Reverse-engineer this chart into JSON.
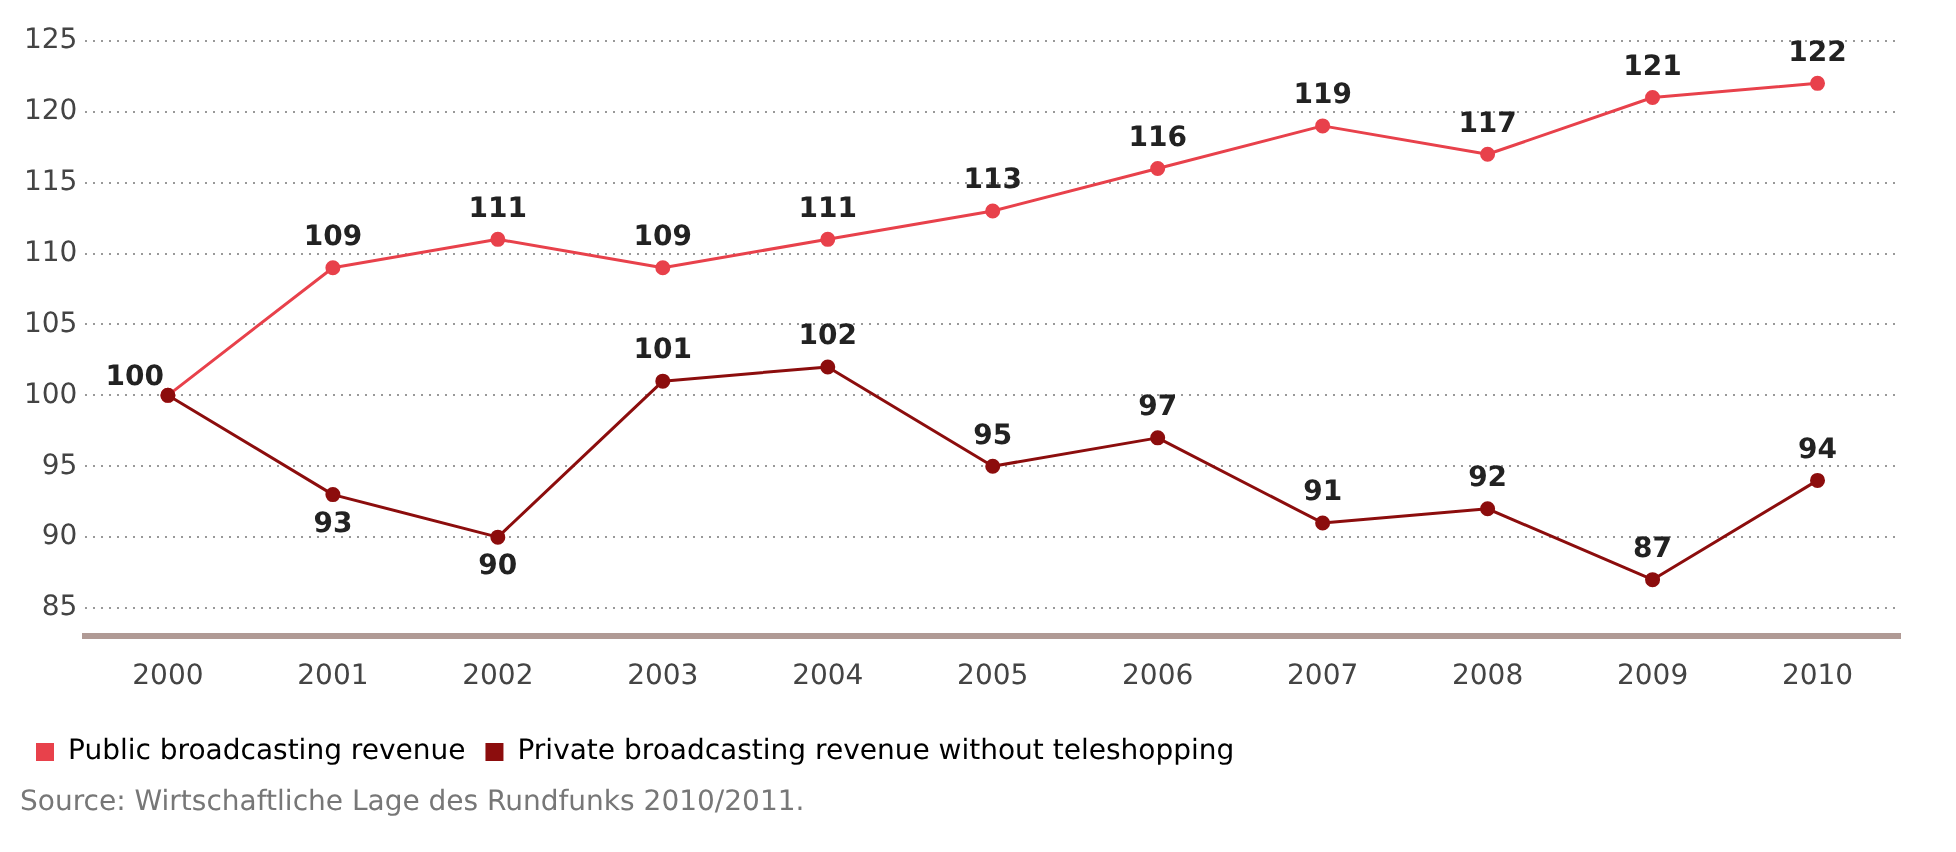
{
  "chart_data": {
    "type": "line",
    "categories": [
      "2000",
      "2001",
      "2002",
      "2003",
      "2004",
      "2005",
      "2006",
      "2007",
      "2008",
      "2009",
      "2010"
    ],
    "series": [
      {
        "name": "Public broadcasting revenue",
        "color": "#e8414b",
        "values": [
          100,
          109,
          111,
          109,
          111,
          113,
          116,
          119,
          117,
          121,
          122
        ],
        "value_labels": [
          "100",
          "109",
          "111",
          "109",
          "111",
          "113",
          "116",
          "119",
          "117",
          "121",
          "122"
        ]
      },
      {
        "name": "Private broadcasting revenue without teleshopping",
        "color": "#8c0d0d",
        "values": [
          100,
          93,
          90,
          101,
          102,
          95,
          97,
          91,
          92,
          87,
          94
        ],
        "value_labels": [
          null,
          "93",
          "90",
          "101",
          "102",
          "95",
          "97",
          "91",
          "92",
          "87",
          "94"
        ]
      }
    ],
    "ylim": [
      83,
      125
    ],
    "yticks": [
      85,
      90,
      95,
      100,
      105,
      110,
      115,
      120,
      125
    ],
    "grid": "y",
    "legend": "bottom left",
    "marker": "circle",
    "line_style": "solid",
    "annotations": [
      "Source: Wirtschaftliche Lage des Rundfunks 2010/2011."
    ]
  }
}
